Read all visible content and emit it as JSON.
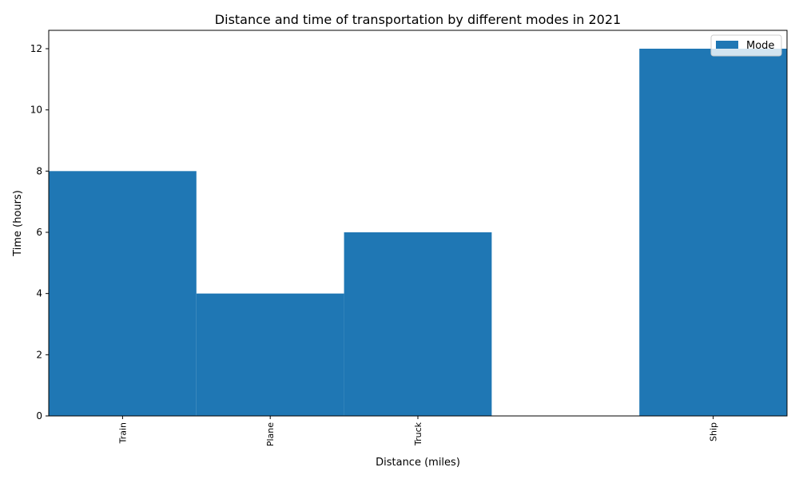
{
  "chart_data": {
    "type": "bar",
    "title": "Distance and time of transportation by different modes in 2021",
    "xlabel": "Distance (miles)",
    "ylabel": "Time (hours)",
    "categories": [
      "Train",
      "Plane",
      "Truck",
      "Ship"
    ],
    "slot_positions": [
      0,
      1,
      2,
      4
    ],
    "slot_range": [
      -0.5,
      4.5
    ],
    "series": [
      {
        "name": "Mode",
        "values": [
          8,
          4,
          6,
          12
        ]
      }
    ],
    "ylim": [
      0,
      12.6
    ],
    "yticks": [
      0,
      2,
      4,
      6,
      8,
      10,
      12
    ],
    "bar_color": "#1f77b4",
    "legend_position": "top-right",
    "grid": false
  }
}
